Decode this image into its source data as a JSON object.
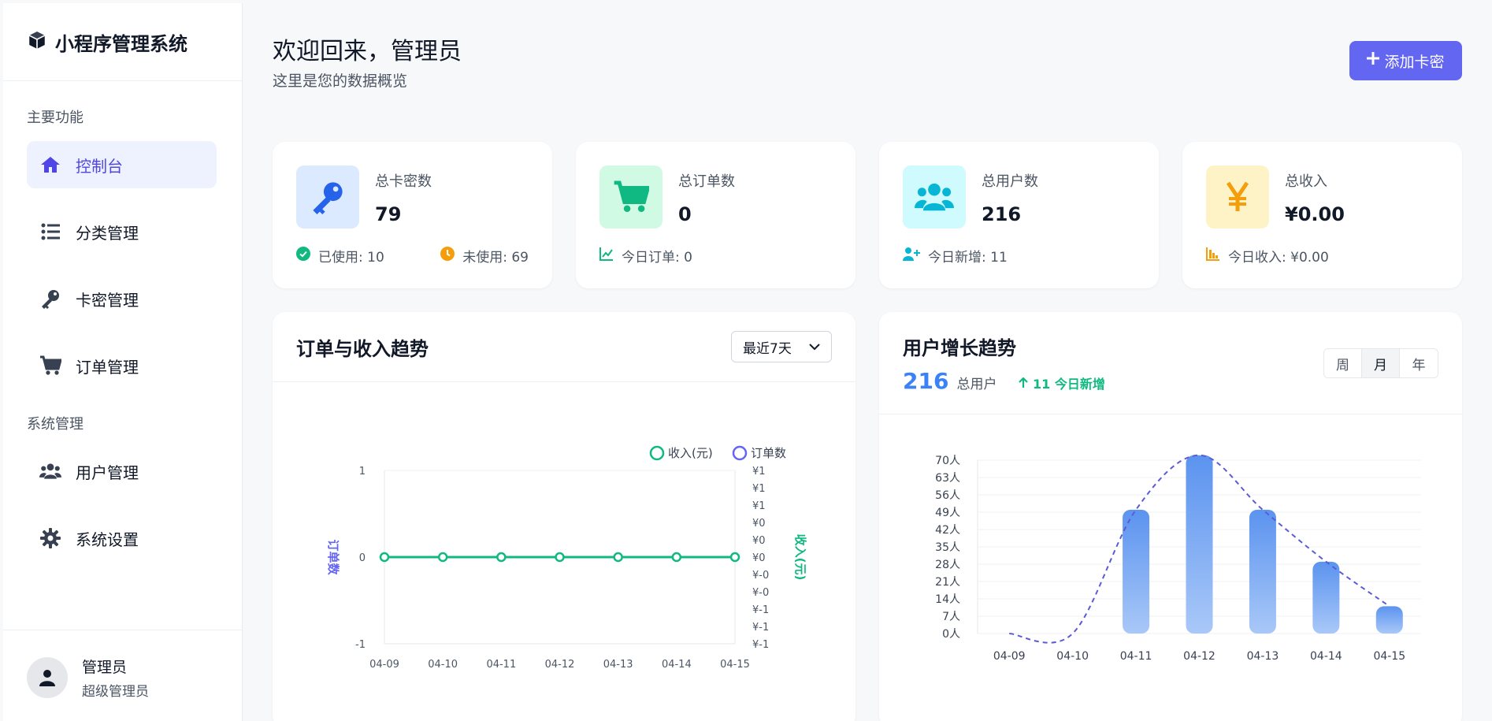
{
  "sidebar": {
    "brand": "小程序管理系统",
    "section_main": "主要功能",
    "section_system": "系统管理",
    "items": [
      {
        "label": "控制台",
        "icon": "home-icon"
      },
      {
        "label": "分类管理",
        "icon": "list-icon"
      },
      {
        "label": "卡密管理",
        "icon": "key-icon"
      },
      {
        "label": "订单管理",
        "icon": "cart-icon"
      },
      {
        "label": "用户管理",
        "icon": "users-icon"
      },
      {
        "label": "系统设置",
        "icon": "gear-icon"
      }
    ],
    "user": {
      "name": "管理员",
      "role": "超级管理员"
    }
  },
  "header": {
    "welcome": "欢迎回来，管理员",
    "subtitle": "这里是您的数据概览",
    "add_button": "添加卡密"
  },
  "stats": [
    {
      "label": "总卡密数",
      "value": "79",
      "icon": "key-icon",
      "color": "#2563eb",
      "bg": "#dbeafe",
      "left": "已使用: 10",
      "right": "未使用: 69"
    },
    {
      "label": "总订单数",
      "value": "0",
      "icon": "cart-icon",
      "color": "#10b981",
      "bg": "#d1fae5",
      "left": "今日订单: 0"
    },
    {
      "label": "总用户数",
      "value": "216",
      "icon": "users-icon",
      "color": "#06b6d4",
      "bg": "#cffafe",
      "left": "今日新增: 11"
    },
    {
      "label": "总收入",
      "value": "¥0.00",
      "icon": "yen-icon",
      "color": "#f59e0b",
      "bg": "#fef3c7",
      "left": "今日收入: ¥0.00"
    }
  ],
  "order_chart": {
    "title": "订单与收入趋势",
    "range": "最近7天"
  },
  "user_chart": {
    "title": "用户增长趋势",
    "total": "216",
    "total_label": "总用户",
    "new_today": "11 今日新增",
    "tabs": [
      "周",
      "月",
      "年"
    ],
    "active_tab": "月"
  },
  "chart_data": [
    {
      "type": "line",
      "categories": [
        "04-09",
        "04-10",
        "04-11",
        "04-12",
        "04-13",
        "04-14",
        "04-15"
      ],
      "series": [
        {
          "name": "收入(元)",
          "values": [
            0,
            0,
            0,
            0,
            0,
            0,
            0
          ],
          "color": "#10b981"
        },
        {
          "name": "订单数",
          "values": [
            0,
            0,
            0,
            0,
            0,
            0,
            0
          ],
          "color": "#6366f1"
        }
      ],
      "ylabel_left": "订单数",
      "ylabel_right": "收入(元)",
      "ylim_left": [
        -1,
        1
      ],
      "yticks_left": [
        "1",
        "0",
        "-1"
      ],
      "yticks_right": [
        "¥1",
        "¥1",
        "¥1",
        "¥0",
        "¥0",
        "¥0",
        "¥-0",
        "¥-0",
        "¥-1",
        "¥-1",
        "¥-1"
      ],
      "legend": "top-right"
    },
    {
      "type": "bar",
      "categories": [
        "04-09",
        "04-10",
        "04-11",
        "04-12",
        "04-13",
        "04-14",
        "04-15"
      ],
      "values": [
        0,
        0,
        50,
        72,
        50,
        29,
        11
      ],
      "trend_values": [
        0,
        0,
        50,
        72,
        50,
        29,
        11
      ],
      "ylim": [
        0,
        70
      ],
      "yticks": [
        "0人",
        "7人",
        "14人",
        "21人",
        "28人",
        "35人",
        "42人",
        "49人",
        "56人",
        "63人",
        "70人"
      ],
      "color": "#3b82f6"
    }
  ]
}
